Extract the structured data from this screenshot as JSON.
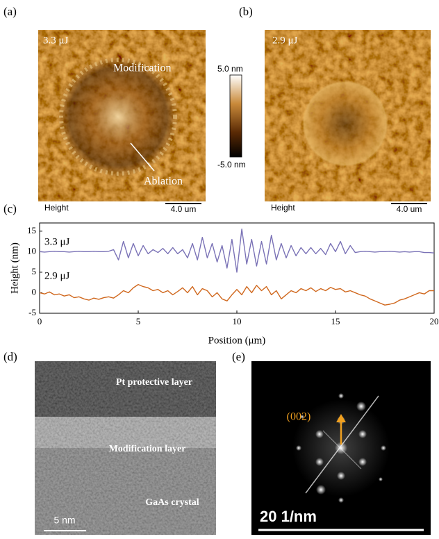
{
  "panel_labels": [
    "(a)",
    "(b)",
    "(c)",
    "(d)",
    "(e)"
  ],
  "afm": [
    {
      "energy": "3.3 μJ",
      "annotations": [
        "Modification",
        "Ablation"
      ],
      "channel": "Height",
      "scale": "4.0 um"
    },
    {
      "energy": "2.9 μJ",
      "channel": "Height",
      "scale": "4.0 um"
    }
  ],
  "colorbar": {
    "max": "5.0 nm",
    "min": "-5.0 nm"
  },
  "tem": {
    "layers": [
      "Pt protective layer",
      "Modification layer",
      "GaAs crystal"
    ],
    "scale": "5 nm"
  },
  "fft": {
    "spot": "(002)",
    "scale": "20 1/nm"
  },
  "chart_data": {
    "type": "line",
    "xlabel": "Position (μm)",
    "ylabel": "Height (nm)",
    "xlim": [
      0,
      20
    ],
    "xticks": [
      0,
      5,
      10,
      15,
      20
    ],
    "ylim": [
      -5,
      17
    ],
    "yticks": [
      -5,
      0,
      5,
      10,
      15
    ],
    "x": [
      0,
      0.25,
      0.5,
      0.75,
      1,
      1.25,
      1.5,
      1.75,
      2,
      2.25,
      2.5,
      2.75,
      3,
      3.25,
      3.5,
      3.75,
      4,
      4.25,
      4.5,
      4.75,
      5,
      5.25,
      5.5,
      5.75,
      6,
      6.25,
      6.5,
      6.75,
      7,
      7.25,
      7.5,
      7.75,
      8,
      8.25,
      8.5,
      8.75,
      9,
      9.25,
      9.5,
      9.75,
      10,
      10.25,
      10.5,
      10.75,
      11,
      11.25,
      11.5,
      11.75,
      12,
      12.25,
      12.5,
      12.75,
      13,
      13.25,
      13.5,
      13.75,
      14,
      14.25,
      14.5,
      14.75,
      15,
      15.25,
      15.5,
      15.75,
      16,
      16.25,
      16.5,
      16.75,
      17,
      17.25,
      17.5,
      17.75,
      18,
      18.25,
      18.5,
      18.75,
      19,
      19.25,
      19.5,
      19.75,
      20
    ],
    "series": [
      {
        "name": "3.3 μJ",
        "color": "#7a72b6",
        "values": [
          10,
          9.9,
          10,
          10.1,
          10,
          10,
          9.9,
          10,
          10.1,
          10,
          10,
          10.1,
          10,
          10,
          10.1,
          10.5,
          8,
          12.5,
          8.5,
          12,
          9,
          11.5,
          9.5,
          10.5,
          9.8,
          10.8,
          9.5,
          11,
          9.5,
          10.5,
          8.5,
          12,
          8,
          13.5,
          8.5,
          12,
          7.5,
          11.5,
          6,
          13,
          5,
          15.5,
          7,
          13,
          6.5,
          12.5,
          7,
          14,
          8,
          12,
          8.5,
          11.5,
          9,
          11,
          9.5,
          11,
          9.5,
          10.8,
          9.3,
          12,
          10,
          12.5,
          9.5,
          11.5,
          9.8,
          10,
          10.1,
          10,
          9.9,
          10,
          10,
          10.1,
          10,
          9.9,
          10,
          9.9,
          10,
          10,
          9.8,
          9.8,
          9.7
        ]
      },
      {
        "name": "2.9 μJ",
        "color": "#d0681e",
        "values": [
          0,
          -0.3,
          0.2,
          -0.5,
          -0.3,
          -0.8,
          -0.5,
          -1.2,
          -1,
          -1.5,
          -1.8,
          -1.3,
          -1.6,
          -1.2,
          -1,
          -1.3,
          -0.5,
          0.5,
          0,
          1.2,
          2,
          1.5,
          1.2,
          0.5,
          0.8,
          0,
          0.5,
          -0.5,
          0.3,
          1.2,
          0,
          1.5,
          -0.5,
          1,
          0.5,
          -1,
          0,
          -1.5,
          -2,
          -0.5,
          0.8,
          -0.5,
          1.5,
          0,
          1.8,
          0.5,
          1.5,
          -0.5,
          0.5,
          -1.5,
          -0.5,
          0.5,
          0,
          1,
          0.5,
          1.2,
          0.3,
          1,
          0.5,
          1.3,
          0.8,
          1,
          0.2,
          0.5,
          0,
          -0.5,
          -0.8,
          -1.5,
          -2,
          -2.5,
          -3,
          -2.8,
          -2.5,
          -1.8,
          -1.5,
          -1,
          -0.5,
          0,
          -0.3,
          0.5,
          0.5
        ]
      }
    ]
  }
}
